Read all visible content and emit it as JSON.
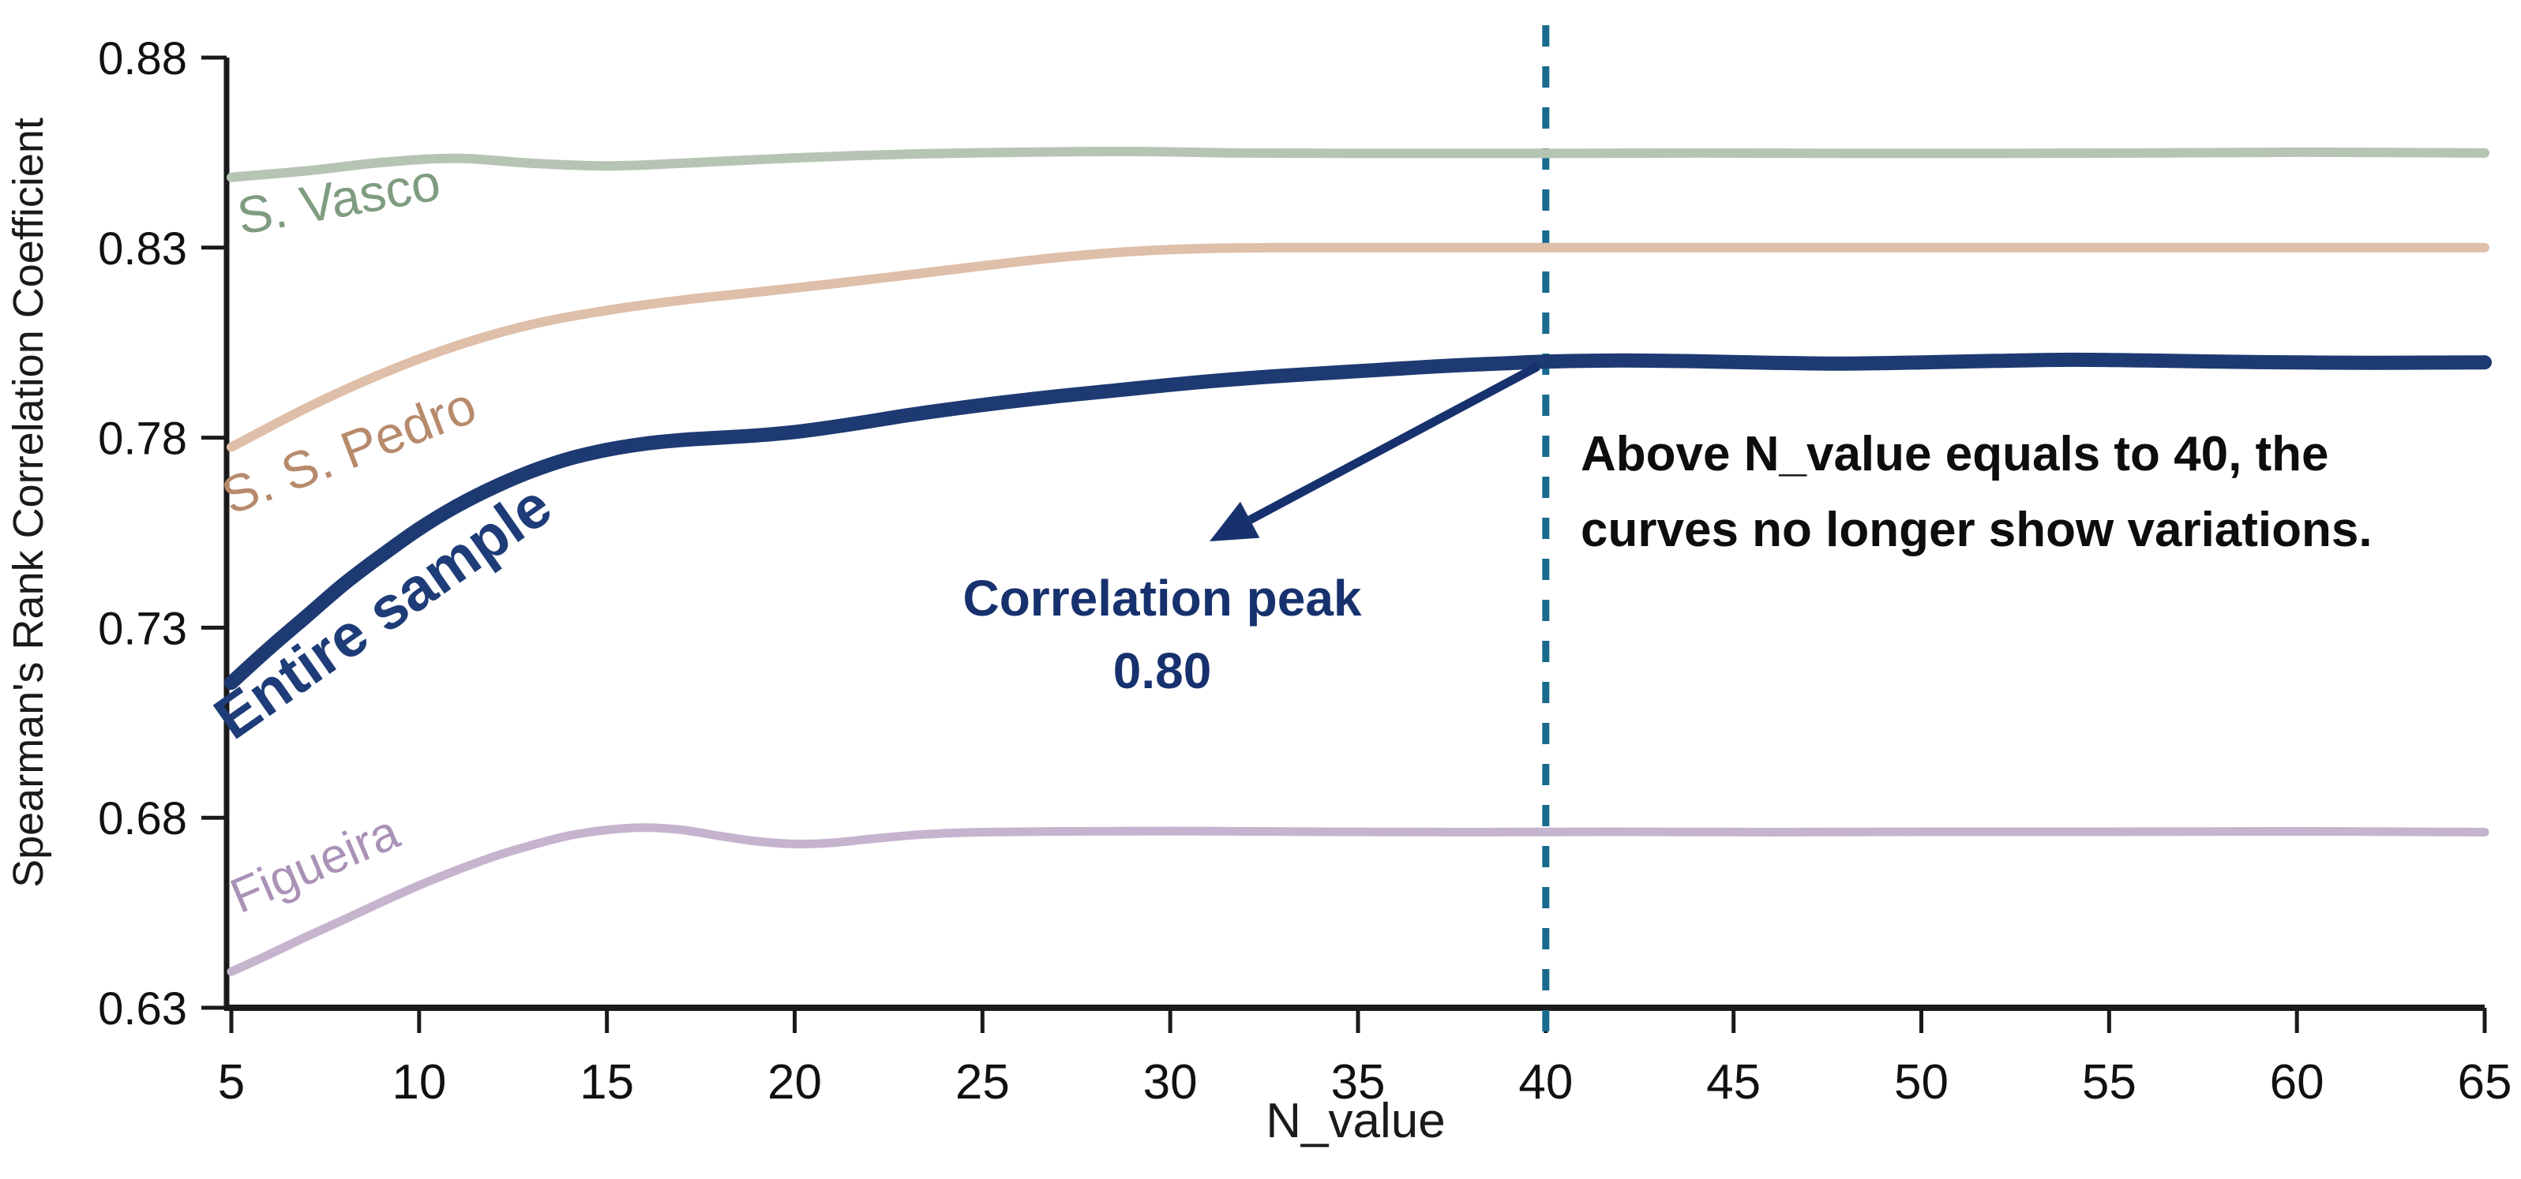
{
  "chart_data": {
    "type": "line",
    "xlabel": "N_value",
    "ylabel": "Spearman's Rank Correlation Coefficient",
    "x_range": [
      5,
      65
    ],
    "y_range": [
      0.63,
      0.88
    ],
    "x_ticks": [
      5,
      10,
      15,
      20,
      25,
      30,
      35,
      40,
      45,
      50,
      55,
      60,
      65
    ],
    "y_ticks": [
      0.63,
      0.68,
      0.73,
      0.78,
      0.83,
      0.88
    ],
    "grid": false,
    "legend": "inline-curve-labels",
    "axis_color": "#1a1a1a",
    "series": [
      {
        "name": "S. Vasco",
        "color": "#b6c4b4",
        "label_color": "#7f9c80",
        "points": [
          [
            5,
            0.8485
          ],
          [
            7,
            0.8502
          ],
          [
            9,
            0.8524
          ],
          [
            11,
            0.8535
          ],
          [
            13,
            0.8522
          ],
          [
            15,
            0.8515
          ],
          [
            17,
            0.8522
          ],
          [
            20,
            0.8536
          ],
          [
            23,
            0.8546
          ],
          [
            26,
            0.8551
          ],
          [
            29,
            0.8553
          ],
          [
            32,
            0.8549
          ],
          [
            36,
            0.8548
          ],
          [
            40,
            0.8548
          ],
          [
            44,
            0.8549
          ],
          [
            48,
            0.8548
          ],
          [
            52,
            0.8548
          ],
          [
            56,
            0.8549
          ],
          [
            60,
            0.8551
          ],
          [
            65,
            0.8549
          ]
        ]
      },
      {
        "name": "S. S. Pedro",
        "color": "#debfa9",
        "label_color": "#b78a6c",
        "points": [
          [
            5,
            0.7775
          ],
          [
            7,
            0.7878
          ],
          [
            9,
            0.7968
          ],
          [
            11,
            0.8042
          ],
          [
            13,
            0.8098
          ],
          [
            15,
            0.8135
          ],
          [
            17,
            0.8162
          ],
          [
            19,
            0.8183
          ],
          [
            21,
            0.8205
          ],
          [
            23,
            0.8228
          ],
          [
            25,
            0.8252
          ],
          [
            27,
            0.8274
          ],
          [
            29,
            0.829
          ],
          [
            31,
            0.8298
          ],
          [
            33,
            0.83
          ],
          [
            36,
            0.83
          ],
          [
            40,
            0.83
          ],
          [
            45,
            0.83
          ],
          [
            50,
            0.83
          ],
          [
            55,
            0.83
          ],
          [
            60,
            0.83
          ],
          [
            65,
            0.83
          ]
        ]
      },
      {
        "name": "Entire sample",
        "color": "#1e3a72",
        "label_color": "#1e3c78",
        "points": [
          [
            5,
            0.7155
          ],
          [
            6,
            0.7245
          ],
          [
            7,
            0.733
          ],
          [
            8,
            0.7415
          ],
          [
            9,
            0.749
          ],
          [
            10,
            0.756
          ],
          [
            11,
            0.762
          ],
          [
            12,
            0.767
          ],
          [
            13,
            0.7712
          ],
          [
            14,
            0.7745
          ],
          [
            15,
            0.7768
          ],
          [
            16,
            0.7784
          ],
          [
            17,
            0.7794
          ],
          [
            18,
            0.78
          ],
          [
            19,
            0.7806
          ],
          [
            20,
            0.7815
          ],
          [
            21,
            0.7828
          ],
          [
            22,
            0.7843
          ],
          [
            23,
            0.7859
          ],
          [
            24,
            0.7873
          ],
          [
            25,
            0.7886
          ],
          [
            26,
            0.7898
          ],
          [
            27,
            0.7909
          ],
          [
            28,
            0.7919
          ],
          [
            29,
            0.7929
          ],
          [
            30,
            0.7939
          ],
          [
            31,
            0.7948
          ],
          [
            32,
            0.7956
          ],
          [
            33,
            0.7963
          ],
          [
            34,
            0.7969
          ],
          [
            35,
            0.7975
          ],
          [
            36,
            0.7981
          ],
          [
            37,
            0.7987
          ],
          [
            38,
            0.7992
          ],
          [
            39,
            0.7996
          ],
          [
            40,
            0.8
          ],
          [
            42,
            0.8003
          ],
          [
            44,
            0.8001
          ],
          [
            46,
            0.7997
          ],
          [
            48,
            0.7995
          ],
          [
            50,
            0.7998
          ],
          [
            52,
            0.8002
          ],
          [
            54,
            0.8005
          ],
          [
            56,
            0.8003
          ],
          [
            58,
            0.8
          ],
          [
            60,
            0.7998
          ],
          [
            62,
            0.7997
          ],
          [
            65,
            0.7998
          ]
        ]
      },
      {
        "name": "Figueira",
        "color": "#c6b4ce",
        "label_color": "#aa92b7",
        "points": [
          [
            5,
            0.6395
          ],
          [
            6,
            0.644
          ],
          [
            7,
            0.6487
          ],
          [
            8,
            0.6532
          ],
          [
            9,
            0.6578
          ],
          [
            10,
            0.6622
          ],
          [
            11,
            0.6662
          ],
          [
            12,
            0.6698
          ],
          [
            13,
            0.6728
          ],
          [
            14,
            0.6753
          ],
          [
            15,
            0.6768
          ],
          [
            16,
            0.6774
          ],
          [
            17,
            0.6768
          ],
          [
            18,
            0.6752
          ],
          [
            19,
            0.6738
          ],
          [
            20,
            0.6731
          ],
          [
            21,
            0.6734
          ],
          [
            22,
            0.6744
          ],
          [
            23,
            0.6753
          ],
          [
            24,
            0.6759
          ],
          [
            25,
            0.6762
          ],
          [
            27,
            0.6764
          ],
          [
            30,
            0.6765
          ],
          [
            34,
            0.6763
          ],
          [
            38,
            0.6762
          ],
          [
            42,
            0.6763
          ],
          [
            46,
            0.6762
          ],
          [
            50,
            0.6763
          ],
          [
            55,
            0.6763
          ],
          [
            60,
            0.6764
          ],
          [
            65,
            0.6762
          ]
        ]
      }
    ],
    "reference_line": {
      "x": 40,
      "color": "#1a6a8e",
      "style": "dashed"
    },
    "annotations": {
      "peak": {
        "line1": "Correlation peak",
        "line2": "0.80",
        "color": "#16316d",
        "target_x": 40,
        "target_y": 0.8
      },
      "note": {
        "line1": "Above N_value equals to 40, the",
        "line2": "curves no longer show variations.",
        "color": "#0d0d0d"
      }
    }
  }
}
